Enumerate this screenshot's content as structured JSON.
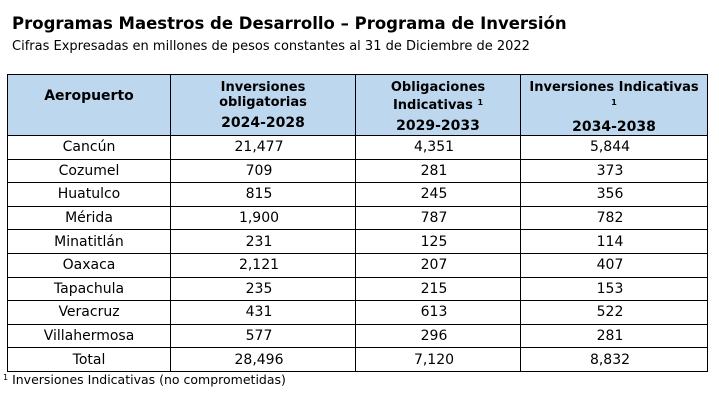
{
  "title": "Programas Maestros de Desarrollo – Programa de Inversión",
  "subtitle": "Cifras Expresadas en millones de pesos constantes al 31 de  Diciembre de 2022",
  "header": {
    "airport": "Aeropuerto",
    "col1_line1": "Inversiones",
    "col1_line2": "obligatorias",
    "col1_period": "2024-2028",
    "col2_line1": "Obligaciones",
    "col2_line2": "Indicativas",
    "col2_sup": "1",
    "col2_period": "2029-2033",
    "col3_line1": "Inversiones Indicativas",
    "col3_sup": "1",
    "col3_period": "2034-2038"
  },
  "rows": [
    {
      "airport": "Cancún",
      "v1": "21,477",
      "v2": "4,351",
      "v3": "5,844"
    },
    {
      "airport": "Cozumel",
      "v1": "709",
      "v2": "281",
      "v3": "373"
    },
    {
      "airport": "Huatulco",
      "v1": "815",
      "v2": "245",
      "v3": "356"
    },
    {
      "airport": "Mérida",
      "v1": "1,900",
      "v2": "787",
      "v3": "782"
    },
    {
      "airport": "Minatitlán",
      "v1": "231",
      "v2": "125",
      "v3": "114"
    },
    {
      "airport": "Oaxaca",
      "v1": "2,121",
      "v2": "207",
      "v3": "407"
    },
    {
      "airport": "Tapachula",
      "v1": "235",
      "v2": "215",
      "v3": "153"
    },
    {
      "airport": "Veracruz",
      "v1": "431",
      "v2": "613",
      "v3": "522"
    },
    {
      "airport": "Villahermosa",
      "v1": "577",
      "v2": "296",
      "v3": "281"
    }
  ],
  "total": {
    "airport": "Total",
    "v1": "28,496",
    "v2": "7,120",
    "v3": "8,832"
  },
  "footnote": {
    "sup": "1",
    "text": "Inversiones Indicativas (no comprometidas)"
  },
  "colors": {
    "header_bg": "#bdd7ee"
  }
}
